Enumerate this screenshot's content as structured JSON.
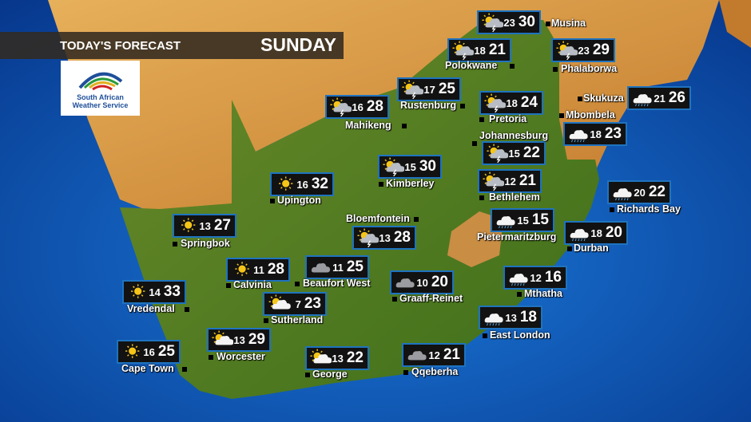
{
  "header": {
    "title": "TODAY'S FORECAST",
    "day": "SUNDAY"
  },
  "logo": {
    "text": "South African Weather Service"
  },
  "colors": {
    "box_border": "#1f73bf",
    "ocean": "#0a4fa8",
    "land": "#4e7a1e",
    "neighbours": "#d99a3c"
  },
  "cities": [
    {
      "name": "Musina",
      "min": "23",
      "max": "30",
      "icon": "sun-cloud-thunder-icon"
    },
    {
      "name": "Polokwane",
      "min": "18",
      "max": "21",
      "icon": "sun-cloud-thunder-icon"
    },
    {
      "name": "Phalaborwa",
      "min": "23",
      "max": "29",
      "icon": "sun-cloud-thunder-icon"
    },
    {
      "name": "Rustenburg",
      "min": "17",
      "max": "25",
      "icon": "sun-cloud-thunder-icon"
    },
    {
      "name": "Mahikeng",
      "min": "16",
      "max": "28",
      "icon": "sun-cloud-thunder-icon"
    },
    {
      "name": "Pretoria",
      "min": "18",
      "max": "24",
      "icon": "sun-cloud-thunder-icon"
    },
    {
      "name": "Skukuza",
      "min": "21",
      "max": "26",
      "icon": "rain-cloud-icon"
    },
    {
      "name": "Mbombela",
      "min": "18",
      "max": "23",
      "icon": "rain-cloud-icon"
    },
    {
      "name": "Johannesburg",
      "min": "15",
      "max": "22",
      "icon": "sun-cloud-thunder-icon"
    },
    {
      "name": "Kimberley",
      "min": "15",
      "max": "30",
      "icon": "sun-cloud-thunder-icon"
    },
    {
      "name": "Bethlehem",
      "min": "12",
      "max": "21",
      "icon": "sun-cloud-thunder-icon"
    },
    {
      "name": "Upington",
      "min": "16",
      "max": "32",
      "icon": "sun-icon"
    },
    {
      "name": "Richards Bay",
      "min": "20",
      "max": "22",
      "icon": "rain-cloud-icon"
    },
    {
      "name": "Springbok",
      "min": "13",
      "max": "27",
      "icon": "sun-icon"
    },
    {
      "name": "Bloemfontein",
      "min": "13",
      "max": "28",
      "icon": "sun-cloud-thunder-icon"
    },
    {
      "name": "Pietermaritzburg",
      "min": "15",
      "max": "15",
      "icon": "rain-cloud-icon"
    },
    {
      "name": "Durban",
      "min": "18",
      "max": "20",
      "icon": "rain-cloud-icon"
    },
    {
      "name": "Calvinia",
      "min": "11",
      "max": "28",
      "icon": "sun-icon"
    },
    {
      "name": "Beaufort West",
      "min": "11",
      "max": "25",
      "icon": "cloud-icon"
    },
    {
      "name": "Graaff-Reinet",
      "min": "10",
      "max": "20",
      "icon": "cloud-icon"
    },
    {
      "name": "Mthatha",
      "min": "12",
      "max": "16",
      "icon": "rain-cloud-icon"
    },
    {
      "name": "Vredendal",
      "min": "14",
      "max": "33",
      "icon": "sun-icon"
    },
    {
      "name": "Sutherland",
      "min": "7",
      "max": "23",
      "icon": "sun-cloud-icon"
    },
    {
      "name": "East London",
      "min": "13",
      "max": "18",
      "icon": "rain-cloud-icon"
    },
    {
      "name": "Worcester",
      "min": "13",
      "max": "29",
      "icon": "sun-cloud-icon"
    },
    {
      "name": "Cape Town",
      "min": "16",
      "max": "25",
      "icon": "sun-icon"
    },
    {
      "name": "George",
      "min": "13",
      "max": "22",
      "icon": "sun-cloud-icon"
    },
    {
      "name": "Qqeberha",
      "min": "12",
      "max": "21",
      "icon": "cloud-icon"
    }
  ]
}
